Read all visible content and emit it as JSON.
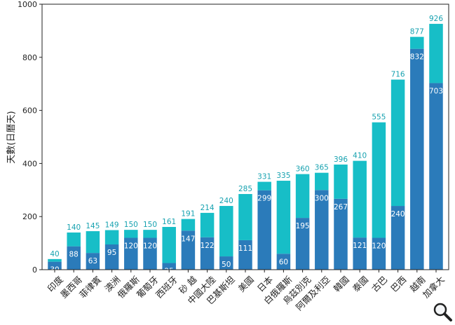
{
  "chart_data": {
    "type": "bar",
    "stacked": true,
    "ylabel": "天數(日曆天)",
    "xlabel": "",
    "title": "",
    "ylim": [
      0,
      1000
    ],
    "yticks": [
      0,
      200,
      400,
      600,
      800,
      1000
    ],
    "grid": false,
    "legend": "none",
    "categories": [
      "印度",
      "墨西哥",
      "菲律賓",
      "澳洲",
      "俄羅斯",
      "葡萄牙",
      "西班牙",
      "砂 越",
      "中國大陸",
      "巴基斯坦",
      "美國",
      "日本",
      "白俄羅斯",
      "烏茲別克",
      "阿爾及利亞",
      "韓國",
      "泰國",
      "古巴",
      "巴西",
      "越南",
      "加拿大"
    ],
    "series": [
      {
        "values": [
          30,
          88,
          63,
          95,
          120,
          120,
          25,
          147,
          122,
          50,
          111,
          299,
          60,
          195,
          300,
          267,
          121,
          120,
          240,
          832,
          703
        ],
        "color": "#2b7bba"
      },
      {
        "values": [
          10,
          52,
          82,
          54,
          30,
          30,
          136,
          44,
          92,
          190,
          174,
          32,
          275,
          165,
          65,
          129,
          289,
          435,
          476,
          45,
          223
        ],
        "color": "#17bec7"
      }
    ],
    "totals": [
      40,
      140,
      145,
      149,
      150,
      150,
      161,
      191,
      214,
      240,
      285,
      331,
      335,
      360,
      365,
      396,
      410,
      555,
      716,
      877,
      926
    ],
    "inner_labels": [
      30,
      88,
      63,
      95,
      120,
      120,
      25,
      147,
      122,
      50,
      111,
      299,
      60,
      195,
      300,
      267,
      121,
      120,
      240,
      832,
      703
    ],
    "colors": {
      "bottom": "#2b7bba",
      "top": "#17bec7",
      "total_label": "#17a2b0",
      "inner_label": "#ffffff"
    }
  },
  "toolbar": {
    "zoom_icon": "magnifier-icon"
  }
}
